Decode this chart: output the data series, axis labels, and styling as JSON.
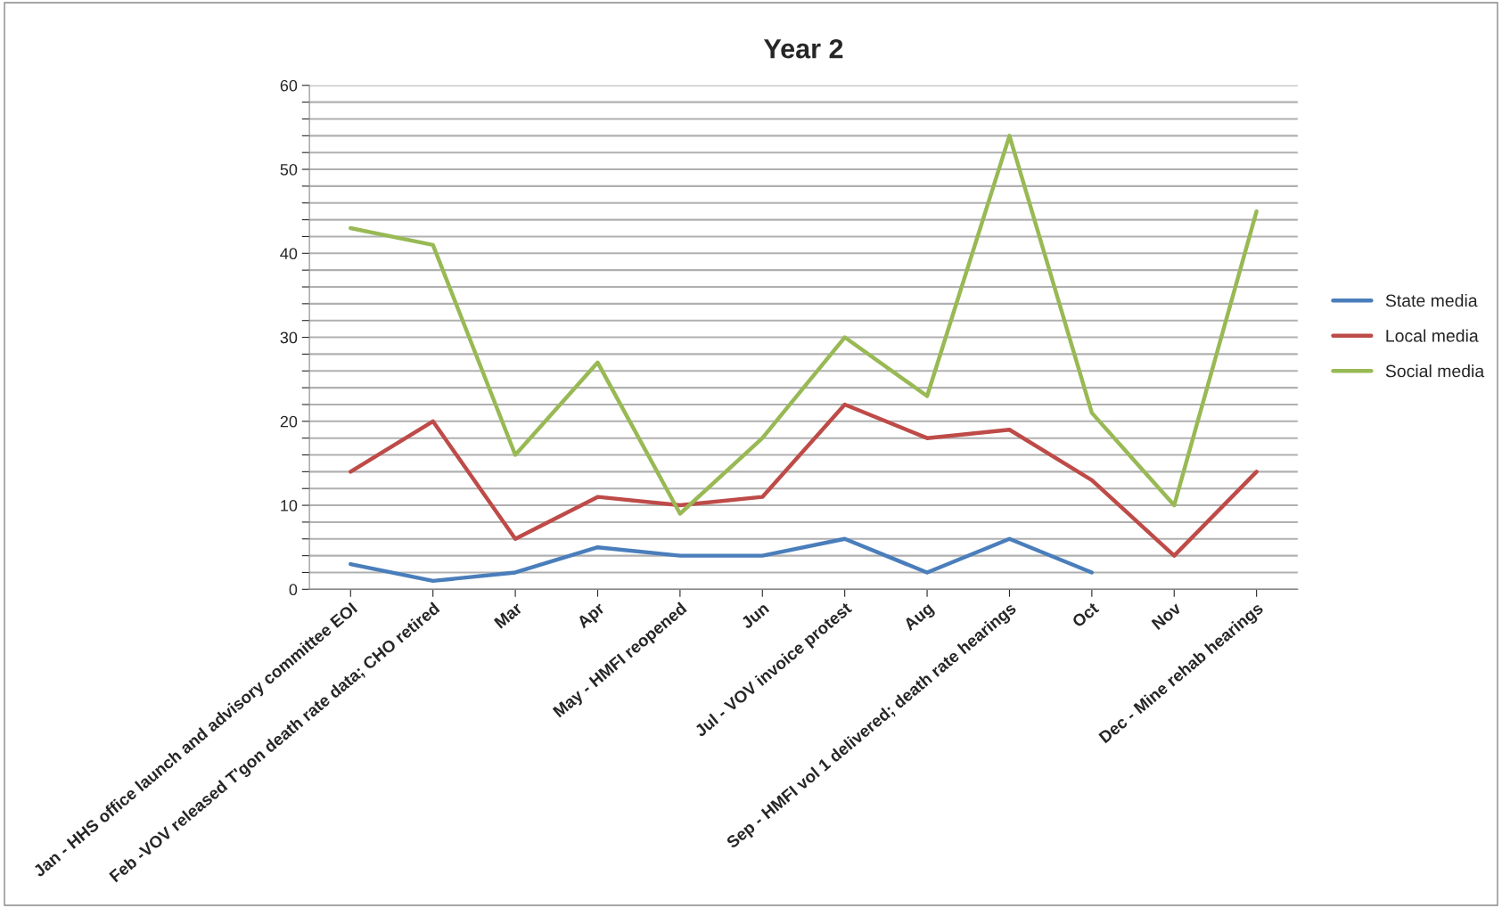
{
  "chart_data": {
    "type": "line",
    "title": "Year 2",
    "categories": [
      "Jan - HHS office launch and advisory committee EOI",
      "Feb -VOV released T'gon death rate data; CHO retired",
      "Mar",
      "Apr",
      "May - HMFI reopened",
      "Jun",
      "Jul - VOV invoice protest",
      "Aug",
      "Sep - HMFI vol 1 delivered; death rate hearings",
      "Oct",
      "Nov",
      "Dec - Mine rehab hearings"
    ],
    "series": [
      {
        "name": "State media",
        "color": "#4a7ebb",
        "values": [
          3,
          1,
          2,
          5,
          4,
          4,
          6,
          2,
          6,
          2,
          null,
          null
        ]
      },
      {
        "name": "Local media",
        "color": "#be4b48",
        "values": [
          14,
          20,
          6,
          11,
          10,
          11,
          22,
          18,
          19,
          13,
          4,
          14
        ]
      },
      {
        "name": "Social media",
        "color": "#98b954",
        "values": [
          43,
          41,
          16,
          27,
          9,
          18,
          30,
          23,
          54,
          21,
          10,
          45
        ]
      }
    ],
    "ylim": [
      0,
      60
    ],
    "yticks": [
      0,
      {
        "value": 2,
        "label": null
      },
      {
        "value": 4,
        "label": null
      },
      {
        "value": 6,
        "label": null
      },
      {
        "value": 8,
        "label": null
      },
      10,
      {
        "value": 12,
        "label": null
      },
      {
        "value": 14,
        "label": null
      },
      {
        "value": 16,
        "label": null
      },
      {
        "value": 18,
        "label": null
      },
      20,
      {
        "value": 22,
        "label": null
      },
      {
        "value": 24,
        "label": null
      },
      {
        "value": 26,
        "label": null
      },
      {
        "value": 28,
        "label": null
      },
      30,
      {
        "value": 32,
        "label": null
      },
      {
        "value": 34,
        "label": null
      },
      {
        "value": 36,
        "label": null
      },
      {
        "value": 38,
        "label": null
      },
      40,
      {
        "value": 42,
        "label": null
      },
      {
        "value": 44,
        "label": null
      },
      {
        "value": 46,
        "label": null
      },
      {
        "value": 48,
        "label": null
      },
      50,
      {
        "value": 52,
        "label": null
      },
      {
        "value": 54,
        "label": null
      },
      {
        "value": 56,
        "label": null
      },
      {
        "value": 58,
        "label": null
      },
      60
    ],
    "grid": "y",
    "legend": "right",
    "marker": "none",
    "line_style": "solid"
  }
}
